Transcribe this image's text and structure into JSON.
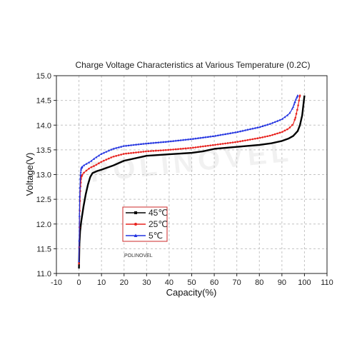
{
  "chart_data": {
    "type": "line",
    "title": "Charge Voltage Characteristics at Various Temperature (0.2C)",
    "xlabel": "Capacity(%)",
    "ylabel": "Voltage(V)",
    "xlim": [
      -10,
      110
    ],
    "ylim": [
      11.0,
      15.0
    ],
    "xticks": [
      "-10",
      "0",
      "10",
      "20",
      "30",
      "40",
      "50",
      "60",
      "70",
      "80",
      "90",
      "100",
      "110"
    ],
    "yticks": [
      "11.0",
      "11.5",
      "12.0",
      "12.5",
      "13.0",
      "13.5",
      "14.0",
      "14.5",
      "15.0"
    ],
    "grid": true,
    "legend_position": "lower-left",
    "annotation": "POLINOVEL",
    "watermark": "POLINOVEL",
    "series": [
      {
        "name": "45℃",
        "color": "#000000",
        "marker": "square",
        "x": [
          0,
          0.2,
          0.5,
          1,
          2,
          3,
          4,
          5,
          6,
          8,
          10,
          15,
          20,
          30,
          40,
          50,
          55,
          60,
          70,
          80,
          85,
          90,
          93,
          95,
          97,
          98,
          99,
          99.5,
          100
        ],
        "y": [
          11.1,
          11.6,
          11.85,
          12.05,
          12.35,
          12.6,
          12.8,
          12.95,
          13.03,
          13.07,
          13.1,
          13.18,
          13.28,
          13.38,
          13.41,
          13.44,
          13.47,
          13.52,
          13.56,
          13.6,
          13.63,
          13.68,
          13.73,
          13.78,
          13.88,
          14.0,
          14.2,
          14.4,
          14.6
        ]
      },
      {
        "name": "25℃",
        "color": "#e8231f",
        "marker": "circle",
        "x": [
          0,
          0.3,
          0.6,
          1,
          1.5,
          2,
          3,
          5,
          7,
          10,
          15,
          20,
          30,
          40,
          50,
          60,
          70,
          80,
          85,
          90,
          93,
          95,
          96,
          97,
          98
        ],
        "y": [
          11.2,
          12.2,
          12.7,
          12.95,
          13.0,
          13.03,
          13.07,
          13.14,
          13.18,
          13.26,
          13.36,
          13.42,
          13.47,
          13.5,
          13.54,
          13.6,
          13.66,
          13.74,
          13.79,
          13.86,
          13.93,
          14.02,
          14.15,
          14.35,
          14.6
        ]
      },
      {
        "name": "5℃",
        "color": "#2233e0",
        "marker": "triangle",
        "x": [
          0,
          0.3,
          0.6,
          1,
          1.5,
          2,
          3,
          5,
          7,
          10,
          15,
          20,
          30,
          40,
          50,
          60,
          70,
          80,
          85,
          90,
          93,
          94,
          95,
          96,
          97
        ],
        "y": [
          11.25,
          12.5,
          12.95,
          13.13,
          13.16,
          13.18,
          13.21,
          13.26,
          13.33,
          13.42,
          13.52,
          13.58,
          13.63,
          13.67,
          13.72,
          13.78,
          13.86,
          13.96,
          14.03,
          14.12,
          14.22,
          14.28,
          14.37,
          14.5,
          14.6
        ]
      }
    ]
  }
}
